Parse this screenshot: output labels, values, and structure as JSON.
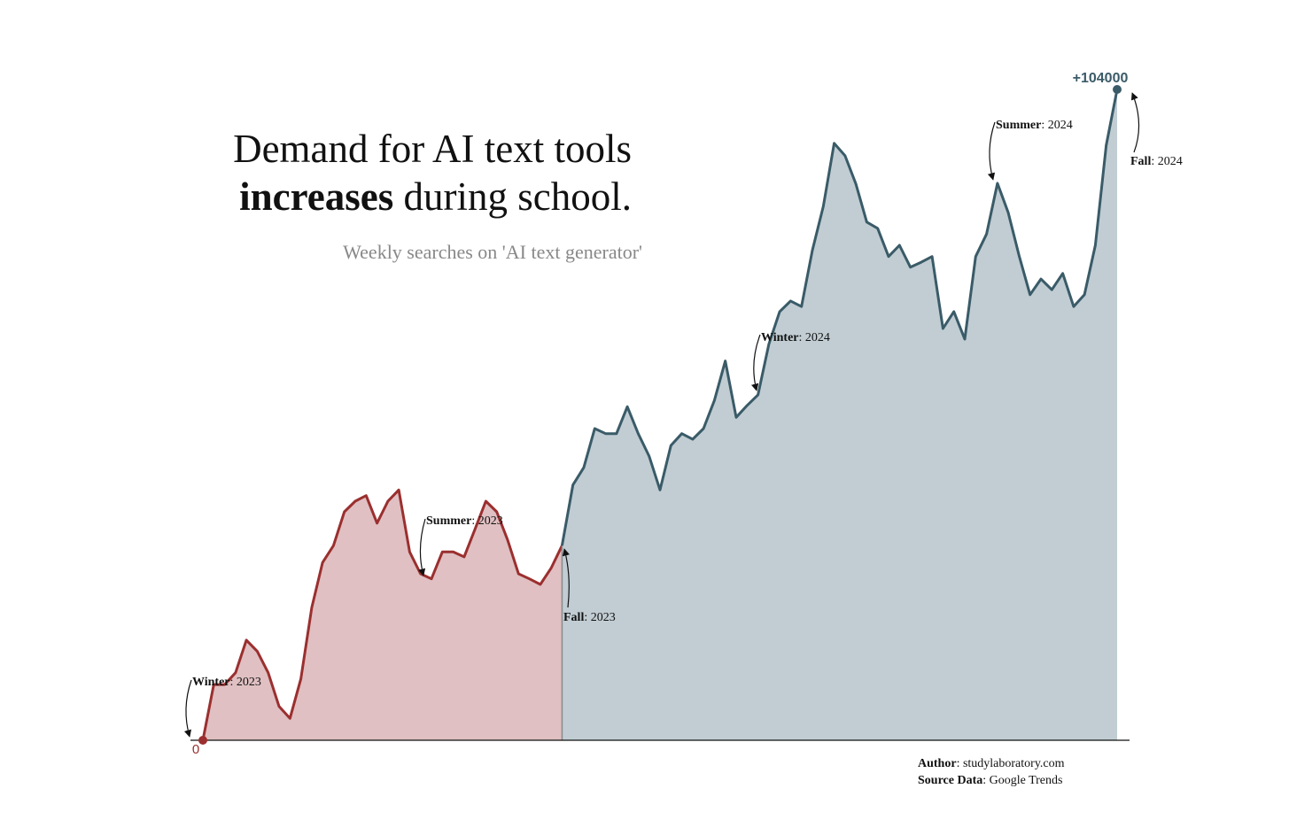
{
  "chart_data": {
    "type": "area",
    "title": [
      "Demand for AI text tools",
      "increases",
      " during school."
    ],
    "subtitle": "Weekly searches on 'AI text generator'",
    "ylim": [
      0,
      104000
    ],
    "series": [
      {
        "color": "#9b2f2f",
        "fill": "#e0c0c2",
        "values": [
          0,
          8900,
          8900,
          10800,
          16000,
          14200,
          10800,
          5400,
          3500,
          9800,
          21200,
          28400,
          31100,
          36500,
          38200,
          39100,
          34700,
          38200,
          40000,
          30100,
          26600,
          25800,
          30100,
          30100,
          29300,
          33700,
          38200,
          36500,
          32000,
          26600,
          25800,
          24900,
          27500,
          31100,
          null,
          null,
          null,
          null,
          null,
          null,
          null,
          null,
          null,
          null,
          null,
          null,
          null,
          null,
          null,
          null,
          null,
          null,
          null,
          null,
          null,
          null,
          null,
          null,
          null,
          null,
          null,
          null,
          null,
          null,
          null,
          null,
          null,
          null,
          null,
          null,
          null,
          null,
          null,
          null,
          null,
          null,
          null,
          null,
          null,
          null,
          null,
          null,
          null,
          null,
          null
        ]
      },
      {
        "color": "#3a5b68",
        "fill": "#c1cdd3",
        "values": [
          null,
          null,
          null,
          null,
          null,
          null,
          null,
          null,
          null,
          null,
          null,
          null,
          null,
          null,
          null,
          null,
          null,
          null,
          null,
          null,
          null,
          null,
          null,
          null,
          null,
          null,
          null,
          null,
          null,
          null,
          null,
          null,
          null,
          31100,
          40800,
          43600,
          49800,
          49000,
          49000,
          53300,
          49000,
          45400,
          40000,
          47100,
          49000,
          48100,
          49800,
          54300,
          60600,
          51600,
          53500,
          55200,
          63300,
          68500,
          70200,
          69300,
          78300,
          85300,
          95400,
          93400,
          88900,
          82800,
          81800,
          77300,
          79100,
          75600,
          76400,
          77300,
          65800,
          68500,
          64100,
          77300,
          80900,
          89000,
          84300,
          77400,
          71200,
          73700,
          72000,
          74600,
          69300,
          71200,
          79100,
          95100,
          104000
        ],
        "value_labels": [
          null,
          null,
          null,
          null,
          null,
          null,
          null,
          null,
          null,
          null,
          null,
          null,
          null,
          null,
          null,
          null,
          null,
          null,
          null,
          null,
          null,
          null,
          null,
          null,
          null,
          null,
          null,
          null,
          null,
          null,
          null,
          null,
          null,
          null,
          null,
          null,
          null,
          null,
          null,
          null,
          null,
          null,
          null,
          null,
          null,
          null,
          null,
          null,
          null,
          null,
          null,
          null,
          null,
          null,
          null,
          null,
          null,
          null,
          null,
          null,
          null,
          null,
          null,
          null,
          null,
          null,
          null,
          null,
          null,
          null,
          null,
          null,
          null,
          null,
          null,
          null,
          null,
          null,
          null,
          null,
          null,
          null,
          null,
          null,
          "+104000"
        ]
      }
    ],
    "annotations": [
      {
        "label": "Winter",
        "text": ": 2023"
      },
      {
        "label": "Summer",
        "text": ": 2023"
      },
      {
        "label": "Fall",
        "text": ": 2023"
      },
      {
        "label": "Winter",
        "text": ": 2024"
      },
      {
        "label": "Summer",
        "text": ": 2024"
      },
      {
        "label": "Fall",
        "text": ": 2024"
      }
    ],
    "footer": [
      {
        "label": "Author",
        "text": ": studylaboratory.com"
      },
      {
        "label": "Source Data",
        "text": ": Google Trends"
      }
    ]
  }
}
